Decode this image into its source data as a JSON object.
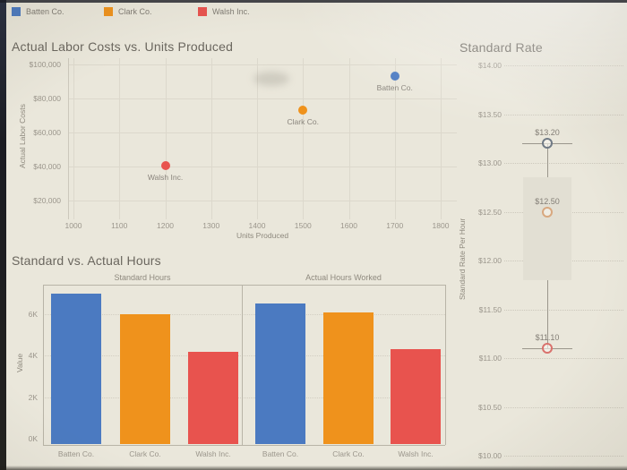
{
  "legend": {
    "items": [
      {
        "label": "Batten Co.",
        "color_key": "batten"
      },
      {
        "label": "Clark Co.",
        "color_key": "clark"
      },
      {
        "label": "Walsh Inc.",
        "color_key": "walsh"
      }
    ]
  },
  "colors": {
    "batten": "#4b7ac1",
    "clark": "#ef921c",
    "walsh": "#e8534e",
    "batten_muted": "#707a85",
    "clark_muted": "#d8a87f",
    "walsh_muted": "#d9726d",
    "box_fill": "#e2dfd3",
    "whisker_line": "#9a968c",
    "background": "#eae7db"
  },
  "chart_data": [
    {
      "type": "scatter",
      "title": "Actual Labor Costs vs. Units Produced",
      "xlabel": "Units Produced",
      "ylabel": "Actual Labor Costs",
      "xlim": [
        990,
        1840
      ],
      "ylim": [
        9000,
        103500
      ],
      "grid": true,
      "x_ticks": [
        1000,
        1100,
        1200,
        1300,
        1400,
        1500,
        1600,
        1700,
        1800
      ],
      "y_ticks": [
        {
          "value": 100000,
          "label": "$100,000"
        },
        {
          "value": 80000,
          "label": "$80,000"
        },
        {
          "value": 60000,
          "label": "$60,000"
        },
        {
          "value": 40000,
          "label": "$40,000"
        },
        {
          "value": 20000,
          "label": "$20,000"
        }
      ],
      "points": [
        {
          "name": "Batten Co.",
          "x": 1700,
          "y": 93000,
          "color_key": "batten"
        },
        {
          "name": "Clark Co.",
          "x": 1500,
          "y": 73200,
          "color_key": "clark"
        },
        {
          "name": "Walsh Inc.",
          "x": 1200,
          "y": 40600,
          "color_key": "walsh"
        }
      ]
    },
    {
      "type": "boxplot",
      "title": "Standard Rate",
      "ylabel": "Standard Rate Per Hour",
      "ylim": [
        10.0,
        14.0
      ],
      "grid": "dotted",
      "y_ticks": [
        {
          "value": 14.0,
          "label": "$14.00"
        },
        {
          "value": 13.5,
          "label": "$13.50"
        },
        {
          "value": 13.0,
          "label": "$13.00"
        },
        {
          "value": 12.5,
          "label": "$12.50"
        },
        {
          "value": 12.0,
          "label": "$12.00"
        },
        {
          "value": 11.5,
          "label": "$11.50"
        },
        {
          "value": 11.0,
          "label": "$11.00"
        },
        {
          "value": 10.5,
          "label": "$10.50"
        },
        {
          "value": 10.0,
          "label": "$10.00"
        }
      ],
      "points": [
        {
          "name": "Batten Co.",
          "value": 13.2,
          "label": "$13.20",
          "color_key": "batten_muted"
        },
        {
          "name": "Clark Co.",
          "value": 12.5,
          "label": "$12.50",
          "color_key": "clark_muted"
        },
        {
          "name": "Walsh Inc.",
          "value": 11.1,
          "label": "$11.10",
          "color_key": "walsh_muted"
        }
      ],
      "box": {
        "q1": 11.8,
        "median": 12.5,
        "q3": 12.85,
        "whisker_low": 11.1,
        "whisker_high": 13.2
      }
    },
    {
      "type": "bar",
      "title": "Standard vs. Actual Hours",
      "ylabel": "Value",
      "ylim": [
        0,
        7400
      ],
      "categories": [
        "Batten Co.",
        "Clark Co.",
        "Walsh Inc."
      ],
      "category_color_keys": [
        "batten",
        "clark",
        "walsh"
      ],
      "series": [
        {
          "name": "Standard Hours",
          "values": [
            7000,
            6000,
            4200
          ]
        },
        {
          "name": "Actual Hours Worked",
          "values": [
            6500,
            6100,
            4300
          ]
        }
      ],
      "y_ticks": [
        {
          "value": 0,
          "label": "0K"
        },
        {
          "value": 2000,
          "label": "2K"
        },
        {
          "value": 4000,
          "label": "4K"
        },
        {
          "value": 6000,
          "label": "6K"
        }
      ]
    }
  ]
}
